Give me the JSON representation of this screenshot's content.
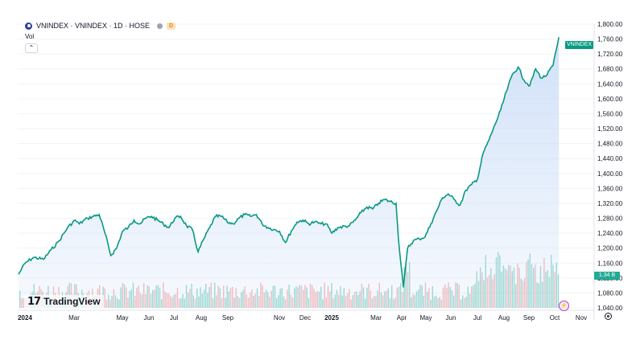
{
  "header": {
    "title": "VNINDEX · VNINDEX · 1D · HOSE",
    "session_badge": "D",
    "logo_icon": "vnindex-logo-icon"
  },
  "indicator": {
    "volume_label": "Vol"
  },
  "price_axis": {
    "ticks": [
      "1,800.00",
      "1,760.00",
      "1,720.00",
      "1,680.00",
      "1,640.00",
      "1,600.00",
      "1,560.00",
      "1,520.00",
      "1,480.00",
      "1,440.00",
      "1,400.00",
      "1,360.00",
      "1,320.00",
      "1,280.00",
      "1,240.00",
      "1,200.00",
      "1,160.00",
      "1,120.00",
      "1,080.00",
      "1,040.00"
    ],
    "last_label": "VNINDEX",
    "volume_label": "1.34 B"
  },
  "time_axis": {
    "labels": [
      "2024",
      "Mar",
      "May",
      "Jun",
      "Jul",
      "Aug",
      "Sep",
      "Nov",
      "Dec",
      "2025",
      "Mar",
      "Apr",
      "May",
      "Jun",
      "Jul",
      "Aug",
      "Sep",
      "Oct",
      "Nov"
    ]
  },
  "branding": {
    "mark": "17",
    "name": "TradingView"
  },
  "colors": {
    "line": "#089981",
    "area_top": "#c9dcf7",
    "vol_up": "#7fcfc1",
    "vol_down": "#f3a8a8",
    "accent": "#089981"
  },
  "chart_data": {
    "type": "area",
    "title": "VNINDEX · VNINDEX · 1D · HOSE",
    "ylim": [
      1040,
      1800
    ],
    "y_ticks": [
      1040,
      1080,
      1120,
      1160,
      1200,
      1240,
      1280,
      1320,
      1360,
      1400,
      1440,
      1480,
      1520,
      1560,
      1600,
      1640,
      1680,
      1720,
      1760,
      1800
    ],
    "x_range": [
      "2024-01-01",
      "2025-11-05"
    ],
    "series": [
      {
        "points": [
          [
            "2024-01-02",
            1130
          ],
          [
            "2024-01-10",
            1160
          ],
          [
            "2024-01-20",
            1175
          ],
          [
            "2024-02-01",
            1170
          ],
          [
            "2024-02-10",
            1195
          ],
          [
            "2024-02-20",
            1220
          ],
          [
            "2024-03-01",
            1255
          ],
          [
            "2024-03-10",
            1275
          ],
          [
            "2024-03-15",
            1265
          ],
          [
            "2024-03-25",
            1280
          ],
          [
            "2024-04-01",
            1285
          ],
          [
            "2024-04-08",
            1290
          ],
          [
            "2024-04-15",
            1240
          ],
          [
            "2024-04-22",
            1180
          ],
          [
            "2024-04-29",
            1200
          ],
          [
            "2024-05-06",
            1245
          ],
          [
            "2024-05-13",
            1255
          ],
          [
            "2024-05-20",
            1275
          ],
          [
            "2024-05-27",
            1265
          ],
          [
            "2024-06-03",
            1280
          ],
          [
            "2024-06-10",
            1285
          ],
          [
            "2024-06-17",
            1275
          ],
          [
            "2024-06-24",
            1265
          ],
          [
            "2024-07-01",
            1255
          ],
          [
            "2024-07-08",
            1280
          ],
          [
            "2024-07-15",
            1285
          ],
          [
            "2024-07-22",
            1260
          ],
          [
            "2024-07-29",
            1250
          ],
          [
            "2024-08-05",
            1190
          ],
          [
            "2024-08-12",
            1225
          ],
          [
            "2024-08-19",
            1255
          ],
          [
            "2024-08-26",
            1285
          ],
          [
            "2024-09-02",
            1285
          ],
          [
            "2024-09-09",
            1270
          ],
          [
            "2024-09-16",
            1265
          ],
          [
            "2024-09-23",
            1280
          ],
          [
            "2024-09-30",
            1290
          ],
          [
            "2024-10-07",
            1285
          ],
          [
            "2024-10-14",
            1290
          ],
          [
            "2024-10-21",
            1265
          ],
          [
            "2024-10-28",
            1255
          ],
          [
            "2024-11-04",
            1250
          ],
          [
            "2024-11-11",
            1245
          ],
          [
            "2024-11-18",
            1215
          ],
          [
            "2024-11-25",
            1245
          ],
          [
            "2024-12-02",
            1270
          ],
          [
            "2024-12-09",
            1275
          ],
          [
            "2024-12-16",
            1265
          ],
          [
            "2024-12-23",
            1270
          ],
          [
            "2024-12-31",
            1265
          ],
          [
            "2025-01-06",
            1265
          ],
          [
            "2025-01-13",
            1240
          ],
          [
            "2025-01-20",
            1255
          ],
          [
            "2025-02-03",
            1260
          ],
          [
            "2025-02-10",
            1275
          ],
          [
            "2025-02-17",
            1295
          ],
          [
            "2025-02-24",
            1310
          ],
          [
            "2025-03-03",
            1305
          ],
          [
            "2025-03-10",
            1320
          ],
          [
            "2025-03-17",
            1330
          ],
          [
            "2025-03-24",
            1325
          ],
          [
            "2025-03-31",
            1320
          ],
          [
            "2025-04-03",
            1225
          ],
          [
            "2025-04-09",
            1095
          ],
          [
            "2025-04-14",
            1200
          ],
          [
            "2025-04-21",
            1220
          ],
          [
            "2025-04-28",
            1225
          ],
          [
            "2025-05-05",
            1230
          ],
          [
            "2025-05-12",
            1265
          ],
          [
            "2025-05-19",
            1300
          ],
          [
            "2025-05-26",
            1335
          ],
          [
            "2025-06-02",
            1345
          ],
          [
            "2025-06-09",
            1330
          ],
          [
            "2025-06-16",
            1315
          ],
          [
            "2025-06-23",
            1355
          ],
          [
            "2025-06-30",
            1370
          ],
          [
            "2025-07-07",
            1385
          ],
          [
            "2025-07-14",
            1455
          ],
          [
            "2025-07-21",
            1490
          ],
          [
            "2025-07-28",
            1530
          ],
          [
            "2025-08-04",
            1570
          ],
          [
            "2025-08-11",
            1620
          ],
          [
            "2025-08-18",
            1665
          ],
          [
            "2025-08-25",
            1685
          ],
          [
            "2025-09-01",
            1650
          ],
          [
            "2025-09-08",
            1635
          ],
          [
            "2025-09-15",
            1680
          ],
          [
            "2025-09-22",
            1655
          ],
          [
            "2025-09-29",
            1665
          ],
          [
            "2025-10-06",
            1690
          ],
          [
            "2025-10-13",
            1765
          ]
        ]
      }
    ]
  }
}
